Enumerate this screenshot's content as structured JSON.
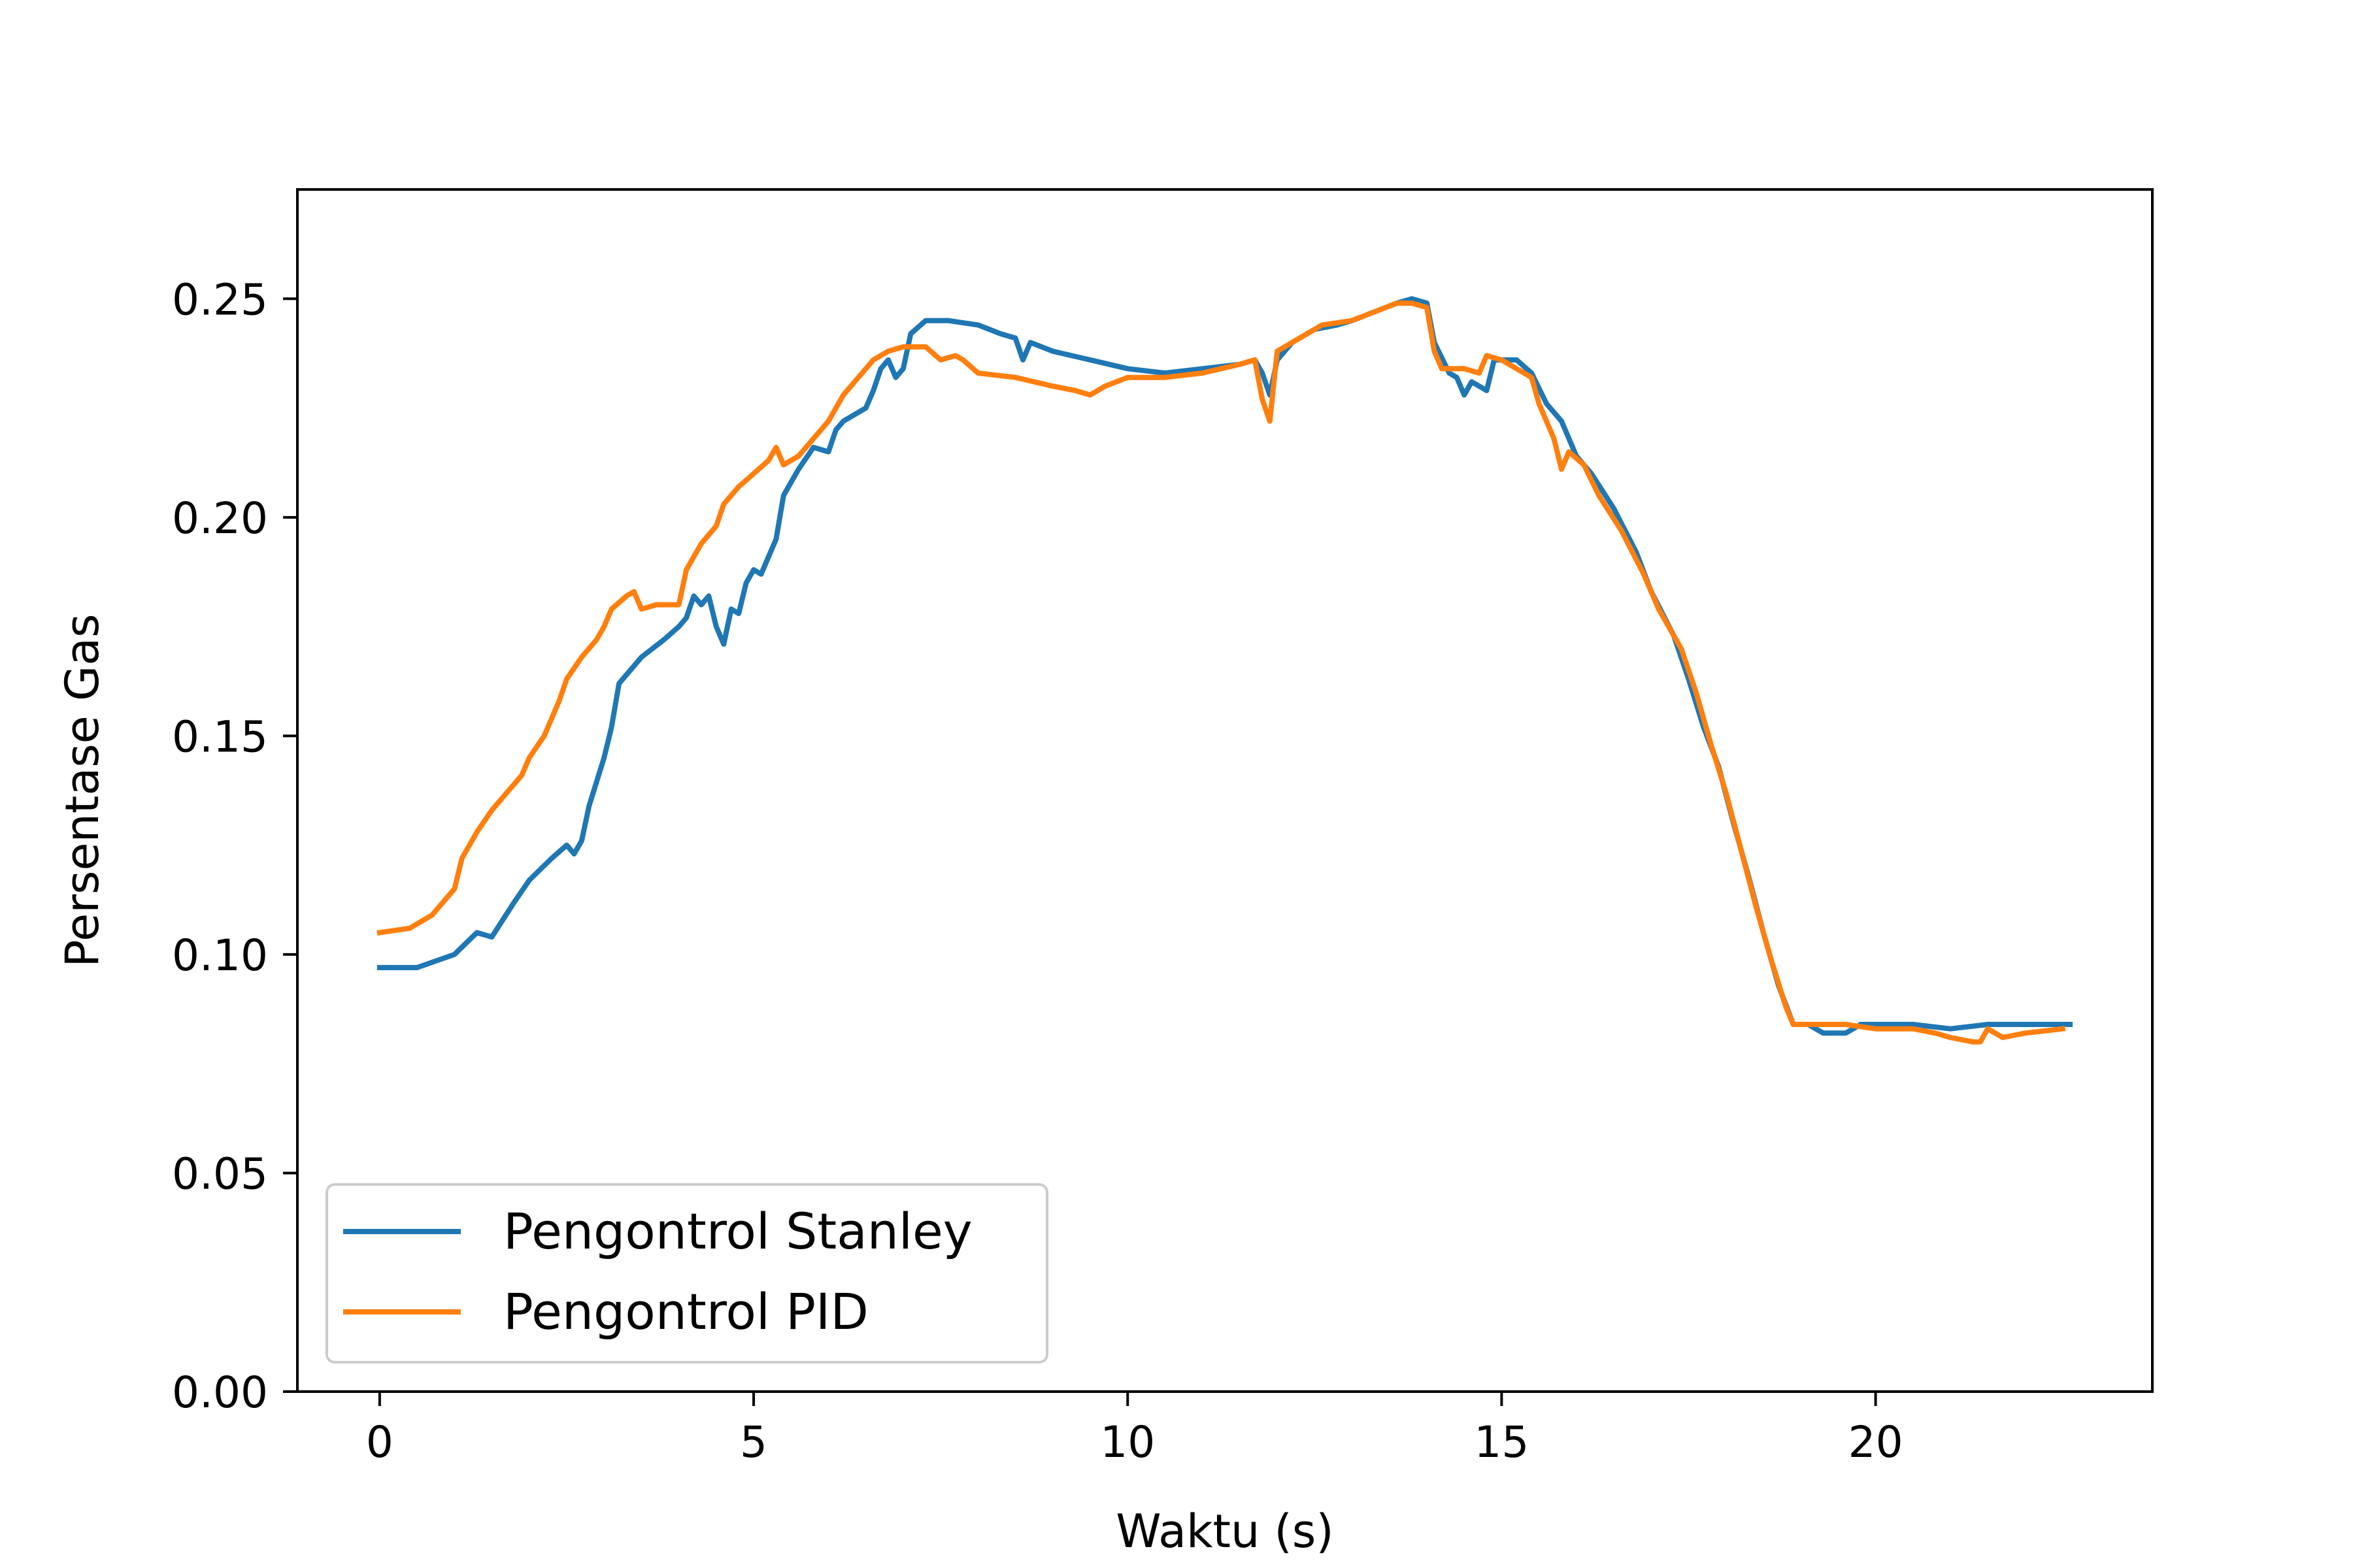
{
  "chart_data": {
    "type": "line",
    "title": "",
    "xlabel": "Waktu (s)",
    "ylabel": "Persentase Gas",
    "xlim": [
      -1.1,
      23.7
    ],
    "ylim": [
      0.0,
      0.275
    ],
    "xticks": [
      0,
      5,
      10,
      15,
      20
    ],
    "yticks": [
      0.0,
      0.05,
      0.1,
      0.15,
      0.2,
      0.25
    ],
    "xtick_labels": [
      "0",
      "5",
      "10",
      "15",
      "20"
    ],
    "ytick_labels": [
      "0.00",
      "0.05",
      "0.10",
      "0.15",
      "0.20",
      "0.25"
    ],
    "grid": false,
    "legend_position": "lower-left",
    "series": [
      {
        "name": "Pengontrol Stanley",
        "color": "#1f77b4",
        "points": [
          [
            0.0,
            0.097
          ],
          [
            0.5,
            0.097
          ],
          [
            1.0,
            0.1
          ],
          [
            1.3,
            0.105
          ],
          [
            1.5,
            0.104
          ],
          [
            1.8,
            0.112
          ],
          [
            2.0,
            0.117
          ],
          [
            2.3,
            0.122
          ],
          [
            2.5,
            0.125
          ],
          [
            2.6,
            0.123
          ],
          [
            2.7,
            0.126
          ],
          [
            2.8,
            0.134
          ],
          [
            3.0,
            0.145
          ],
          [
            3.1,
            0.152
          ],
          [
            3.2,
            0.162
          ],
          [
            3.5,
            0.168
          ],
          [
            3.8,
            0.172
          ],
          [
            4.0,
            0.175
          ],
          [
            4.1,
            0.177
          ],
          [
            4.2,
            0.182
          ],
          [
            4.3,
            0.18
          ],
          [
            4.4,
            0.182
          ],
          [
            4.5,
            0.175
          ],
          [
            4.6,
            0.171
          ],
          [
            4.7,
            0.179
          ],
          [
            4.8,
            0.178
          ],
          [
            4.9,
            0.185
          ],
          [
            5.0,
            0.188
          ],
          [
            5.1,
            0.187
          ],
          [
            5.2,
            0.191
          ],
          [
            5.3,
            0.195
          ],
          [
            5.4,
            0.205
          ],
          [
            5.6,
            0.211
          ],
          [
            5.8,
            0.216
          ],
          [
            6.0,
            0.215
          ],
          [
            6.1,
            0.22
          ],
          [
            6.2,
            0.222
          ],
          [
            6.5,
            0.225
          ],
          [
            6.6,
            0.229
          ],
          [
            6.7,
            0.234
          ],
          [
            6.8,
            0.236
          ],
          [
            6.9,
            0.232
          ],
          [
            7.0,
            0.234
          ],
          [
            7.1,
            0.242
          ],
          [
            7.3,
            0.245
          ],
          [
            7.6,
            0.245
          ],
          [
            8.0,
            0.244
          ],
          [
            8.3,
            0.242
          ],
          [
            8.5,
            0.241
          ],
          [
            8.6,
            0.236
          ],
          [
            8.7,
            0.24
          ],
          [
            9.0,
            0.238
          ],
          [
            9.5,
            0.236
          ],
          [
            10.0,
            0.234
          ],
          [
            10.5,
            0.233
          ],
          [
            11.0,
            0.234
          ],
          [
            11.5,
            0.235
          ],
          [
            11.7,
            0.236
          ],
          [
            11.8,
            0.233
          ],
          [
            11.9,
            0.228
          ],
          [
            12.0,
            0.236
          ],
          [
            12.2,
            0.24
          ],
          [
            12.5,
            0.243
          ],
          [
            12.8,
            0.244
          ],
          [
            13.0,
            0.245
          ],
          [
            13.3,
            0.247
          ],
          [
            13.6,
            0.249
          ],
          [
            13.8,
            0.25
          ],
          [
            14.0,
            0.249
          ],
          [
            14.1,
            0.24
          ],
          [
            14.3,
            0.233
          ],
          [
            14.4,
            0.232
          ],
          [
            14.5,
            0.228
          ],
          [
            14.6,
            0.231
          ],
          [
            14.7,
            0.23
          ],
          [
            14.8,
            0.229
          ],
          [
            14.9,
            0.236
          ],
          [
            15.2,
            0.236
          ],
          [
            15.4,
            0.233
          ],
          [
            15.6,
            0.226
          ],
          [
            15.8,
            0.222
          ],
          [
            16.0,
            0.214
          ],
          [
            16.2,
            0.21
          ],
          [
            16.5,
            0.202
          ],
          [
            16.8,
            0.192
          ],
          [
            17.0,
            0.183
          ],
          [
            17.3,
            0.173
          ],
          [
            17.5,
            0.163
          ],
          [
            17.7,
            0.152
          ],
          [
            17.9,
            0.143
          ],
          [
            18.1,
            0.13
          ],
          [
            18.3,
            0.118
          ],
          [
            18.5,
            0.105
          ],
          [
            18.7,
            0.093
          ],
          [
            18.9,
            0.084
          ],
          [
            19.1,
            0.084
          ],
          [
            19.3,
            0.082
          ],
          [
            19.6,
            0.082
          ],
          [
            19.8,
            0.084
          ],
          [
            20.0,
            0.084
          ],
          [
            20.5,
            0.084
          ],
          [
            21.0,
            0.083
          ],
          [
            21.5,
            0.084
          ],
          [
            22.0,
            0.084
          ],
          [
            22.6,
            0.084
          ]
        ]
      },
      {
        "name": "Pengontrol PID",
        "color": "#ff7f0e",
        "points": [
          [
            0.0,
            0.105
          ],
          [
            0.4,
            0.106
          ],
          [
            0.7,
            0.109
          ],
          [
            0.9,
            0.113
          ],
          [
            1.0,
            0.115
          ],
          [
            1.1,
            0.122
          ],
          [
            1.3,
            0.128
          ],
          [
            1.5,
            0.133
          ],
          [
            1.7,
            0.137
          ],
          [
            1.9,
            0.141
          ],
          [
            2.0,
            0.145
          ],
          [
            2.2,
            0.15
          ],
          [
            2.4,
            0.158
          ],
          [
            2.5,
            0.163
          ],
          [
            2.7,
            0.168
          ],
          [
            2.9,
            0.172
          ],
          [
            3.0,
            0.175
          ],
          [
            3.1,
            0.179
          ],
          [
            3.3,
            0.182
          ],
          [
            3.4,
            0.183
          ],
          [
            3.5,
            0.179
          ],
          [
            3.7,
            0.18
          ],
          [
            3.9,
            0.18
          ],
          [
            4.0,
            0.18
          ],
          [
            4.1,
            0.188
          ],
          [
            4.3,
            0.194
          ],
          [
            4.5,
            0.198
          ],
          [
            4.6,
            0.203
          ],
          [
            4.8,
            0.207
          ],
          [
            5.0,
            0.21
          ],
          [
            5.2,
            0.213
          ],
          [
            5.3,
            0.216
          ],
          [
            5.4,
            0.212
          ],
          [
            5.6,
            0.214
          ],
          [
            5.8,
            0.218
          ],
          [
            6.0,
            0.222
          ],
          [
            6.2,
            0.228
          ],
          [
            6.4,
            0.232
          ],
          [
            6.6,
            0.236
          ],
          [
            6.8,
            0.238
          ],
          [
            7.0,
            0.239
          ],
          [
            7.3,
            0.239
          ],
          [
            7.5,
            0.236
          ],
          [
            7.7,
            0.237
          ],
          [
            7.8,
            0.236
          ],
          [
            8.0,
            0.233
          ],
          [
            8.5,
            0.232
          ],
          [
            9.0,
            0.23
          ],
          [
            9.3,
            0.229
          ],
          [
            9.5,
            0.228
          ],
          [
            9.7,
            0.23
          ],
          [
            10.0,
            0.232
          ],
          [
            10.5,
            0.232
          ],
          [
            11.0,
            0.233
          ],
          [
            11.5,
            0.235
          ],
          [
            11.7,
            0.236
          ],
          [
            11.8,
            0.227
          ],
          [
            11.9,
            0.222
          ],
          [
            12.0,
            0.238
          ],
          [
            12.3,
            0.241
          ],
          [
            12.6,
            0.244
          ],
          [
            13.0,
            0.245
          ],
          [
            13.3,
            0.247
          ],
          [
            13.6,
            0.249
          ],
          [
            13.8,
            0.249
          ],
          [
            14.0,
            0.248
          ],
          [
            14.1,
            0.238
          ],
          [
            14.2,
            0.234
          ],
          [
            14.5,
            0.234
          ],
          [
            14.7,
            0.233
          ],
          [
            14.8,
            0.237
          ],
          [
            15.0,
            0.236
          ],
          [
            15.2,
            0.234
          ],
          [
            15.4,
            0.232
          ],
          [
            15.5,
            0.226
          ],
          [
            15.7,
            0.218
          ],
          [
            15.8,
            0.211
          ],
          [
            15.9,
            0.215
          ],
          [
            16.1,
            0.212
          ],
          [
            16.3,
            0.205
          ],
          [
            16.6,
            0.197
          ],
          [
            16.9,
            0.187
          ],
          [
            17.1,
            0.179
          ],
          [
            17.4,
            0.17
          ],
          [
            17.6,
            0.16
          ],
          [
            17.8,
            0.148
          ],
          [
            18.0,
            0.137
          ],
          [
            18.2,
            0.124
          ],
          [
            18.4,
            0.111
          ],
          [
            18.6,
            0.099
          ],
          [
            18.8,
            0.088
          ],
          [
            18.9,
            0.084
          ],
          [
            19.2,
            0.084
          ],
          [
            19.6,
            0.084
          ],
          [
            20.0,
            0.083
          ],
          [
            20.5,
            0.083
          ],
          [
            20.8,
            0.082
          ],
          [
            21.0,
            0.081
          ],
          [
            21.3,
            0.08
          ],
          [
            21.4,
            0.08
          ],
          [
            21.5,
            0.083
          ],
          [
            21.7,
            0.081
          ],
          [
            22.0,
            0.082
          ],
          [
            22.5,
            0.083
          ]
        ]
      }
    ]
  }
}
